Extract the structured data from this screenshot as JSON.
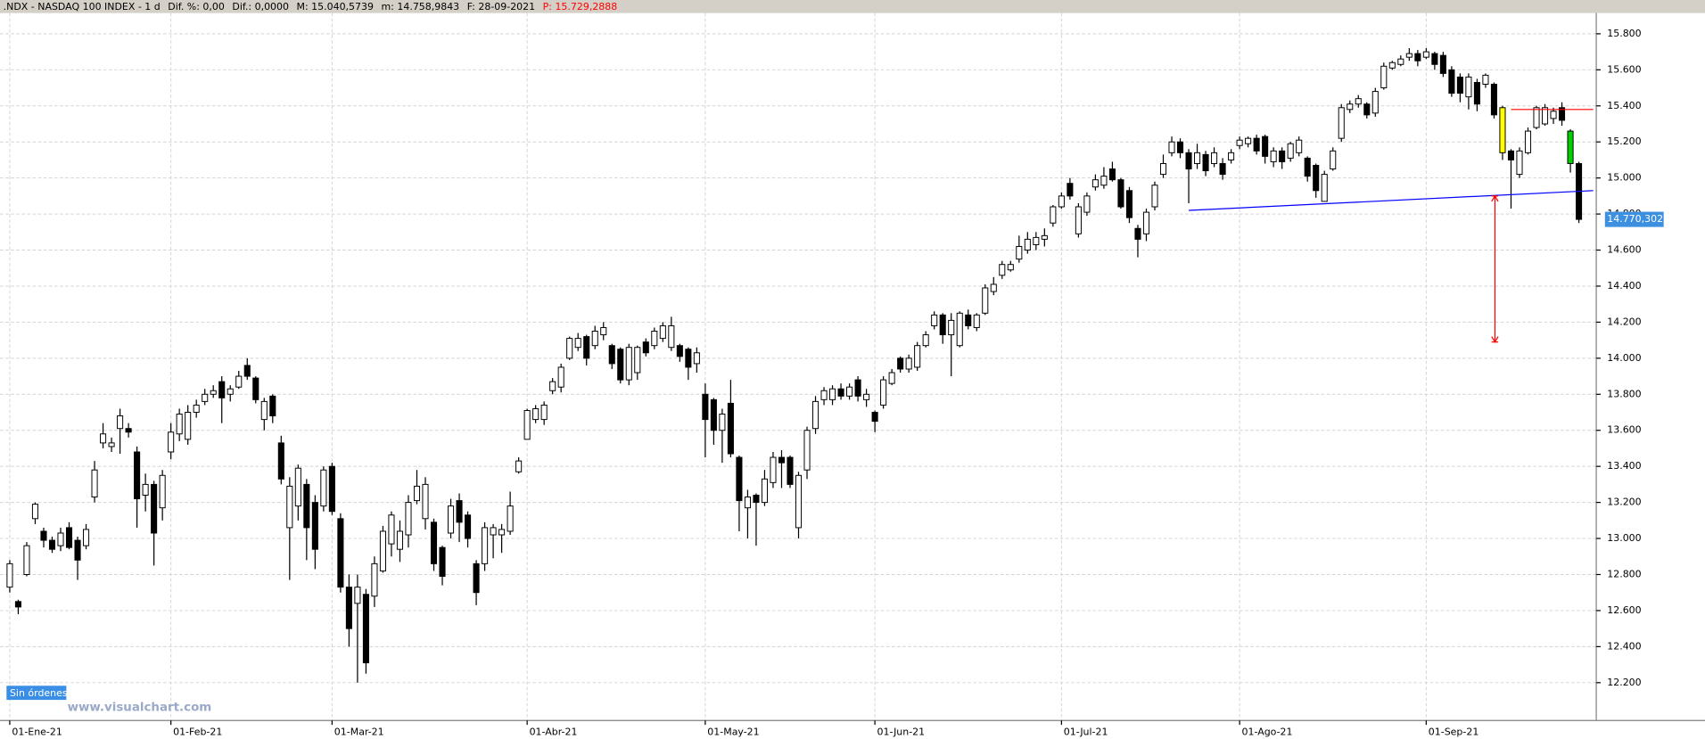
{
  "chart_data": {
    "type": "candlestick",
    "title": ".NDX - NASDAQ 100 INDEX - 1 d",
    "stats": [
      "Dif. %: 0,00",
      "Dif.: 0,0000",
      "M: 15.040,5739",
      "m: 14.758,9843",
      "F: 28-09-2021"
    ],
    "stat_highlight": {
      "text": "P: 15.729,2888",
      "color": "#ff0000"
    },
    "status": "Sin órdenes",
    "watermark": "www.visualchart.com",
    "last_price": {
      "value": 14770.3021,
      "label": "14.770,3021",
      "color": "#3d8fe0"
    },
    "up_color": "#ffffff",
    "down_color": "#000000",
    "highlights": [
      {
        "index": 176,
        "color": "#ffff00"
      },
      {
        "index": 184,
        "color": "#00d000"
      }
    ],
    "grid": true,
    "xlim": [
      -1.15,
      187.05
    ],
    "xticks": [
      {
        "value": 0,
        "label": "01-Ene-21"
      },
      {
        "value": 19,
        "label": "01-Feb-21"
      },
      {
        "value": 38,
        "label": "01-Mar-21"
      },
      {
        "value": 61,
        "label": "01-Abr-21"
      },
      {
        "value": 82,
        "label": "01-May-21"
      },
      {
        "value": 102,
        "label": "01-Jun-21"
      },
      {
        "value": 124,
        "label": "01-Jul-21"
      },
      {
        "value": 145,
        "label": "01-Ago-21"
      },
      {
        "value": 167,
        "label": "01-Sep-21"
      }
    ],
    "ylim": [
      11990,
      15915
    ],
    "yticks": [
      {
        "value": 12200,
        "label": "12.200"
      },
      {
        "value": 12400,
        "label": "12.400"
      },
      {
        "value": 12600,
        "label": "12.600"
      },
      {
        "value": 12800,
        "label": "12.800"
      },
      {
        "value": 13000,
        "label": "13.000"
      },
      {
        "value": 13200,
        "label": "13.200"
      },
      {
        "value": 13400,
        "label": "13.400"
      },
      {
        "value": 13600,
        "label": "13.600"
      },
      {
        "value": 13800,
        "label": "13.800"
      },
      {
        "value": 14000,
        "label": "14.000"
      },
      {
        "value": 14200,
        "label": "14.200"
      },
      {
        "value": 14400,
        "label": "14.400"
      },
      {
        "value": 14600,
        "label": "14.600"
      },
      {
        "value": 14800,
        "label": "14.800"
      },
      {
        "value": 15000,
        "label": "15.000"
      },
      {
        "value": 15200,
        "label": "15.200"
      },
      {
        "value": 15400,
        "label": "15.400"
      },
      {
        "value": 15600,
        "label": "15.600"
      },
      {
        "value": 15800,
        "label": "15.800"
      }
    ],
    "annotations": [
      {
        "kind": "trendline",
        "color": "#0000ff",
        "x": [
          139,
          186.7
        ],
        "y": [
          14820,
          14930
        ]
      },
      {
        "kind": "level",
        "color": "#ff0000",
        "x": [
          177,
          186.7
        ],
        "y": [
          15380,
          15380
        ]
      },
      {
        "kind": "measure",
        "color": "#ff0000",
        "x": [
          175.1,
          175.1
        ],
        "y": [
          14900,
          14090
        ]
      }
    ],
    "ohlc": [
      [
        12730,
        12880,
        12700,
        12860
      ],
      [
        12650,
        12660,
        12580,
        12620
      ],
      [
        12800,
        12980,
        12790,
        12960
      ],
      [
        13110,
        13200,
        13080,
        13190
      ],
      [
        13040,
        13060,
        12950,
        12990
      ],
      [
        12990,
        13010,
        12920,
        12940
      ],
      [
        12960,
        13060,
        12930,
        13030
      ],
      [
        13060,
        13090,
        12940,
        12950
      ],
      [
        12990,
        13010,
        12770,
        12880
      ],
      [
        12960,
        13080,
        12940,
        13050
      ],
      [
        13230,
        13430,
        13200,
        13380
      ],
      [
        13530,
        13640,
        13500,
        13580
      ],
      [
        13510,
        13560,
        13480,
        13530
      ],
      [
        13610,
        13720,
        13470,
        13680
      ],
      [
        13610,
        13640,
        13560,
        13590
      ],
      [
        13480,
        13510,
        13060,
        13220
      ],
      [
        13240,
        13360,
        13150,
        13300
      ],
      [
        13300,
        13320,
        12850,
        13030
      ],
      [
        13170,
        13380,
        13100,
        13350
      ],
      [
        13480,
        13640,
        13440,
        13590
      ],
      [
        13580,
        13720,
        13540,
        13690
      ],
      [
        13550,
        13740,
        13520,
        13700
      ],
      [
        13700,
        13770,
        13670,
        13740
      ],
      [
        13760,
        13830,
        13740,
        13800
      ],
      [
        13800,
        13850,
        13780,
        13820
      ],
      [
        13870,
        13900,
        13640,
        13780
      ],
      [
        13800,
        13850,
        13760,
        13830
      ],
      [
        13840,
        13930,
        13830,
        13900
      ],
      [
        13960,
        14000,
        13880,
        13900
      ],
      [
        13890,
        13900,
        13750,
        13770
      ],
      [
        13660,
        13780,
        13600,
        13760
      ],
      [
        13790,
        13800,
        13640,
        13680
      ],
      [
        13530,
        13570,
        13300,
        13330
      ],
      [
        13060,
        13340,
        12770,
        13290
      ],
      [
        13180,
        13410,
        13100,
        13390
      ],
      [
        13300,
        13330,
        12880,
        13060
      ],
      [
        13200,
        13240,
        12830,
        12940
      ],
      [
        13180,
        13400,
        13150,
        13380
      ],
      [
        13400,
        13420,
        13130,
        13150
      ],
      [
        13110,
        13140,
        12700,
        12730
      ],
      [
        12730,
        12800,
        12400,
        12500
      ],
      [
        12640,
        12800,
        12200,
        12730
      ],
      [
        12690,
        12720,
        12250,
        12310
      ],
      [
        12680,
        12900,
        12620,
        12860
      ],
      [
        12820,
        13070,
        12810,
        13040
      ],
      [
        12970,
        13150,
        12900,
        13130
      ],
      [
        12940,
        13100,
        12870,
        13040
      ],
      [
        13020,
        13240,
        12950,
        13200
      ],
      [
        13210,
        13380,
        13190,
        13290
      ],
      [
        13110,
        13340,
        13050,
        13300
      ],
      [
        13090,
        13110,
        12820,
        12860
      ],
      [
        12950,
        12960,
        12740,
        12790
      ],
      [
        13030,
        13220,
        13000,
        13180
      ],
      [
        13210,
        13250,
        12980,
        13090
      ],
      [
        13130,
        13150,
        12950,
        13000
      ],
      [
        12860,
        12880,
        12630,
        12700
      ],
      [
        12860,
        13090,
        12820,
        13060
      ],
      [
        13020,
        13080,
        12890,
        13060
      ],
      [
        13020,
        13080,
        12920,
        13050
      ],
      [
        13040,
        13260,
        13020,
        13180
      ],
      [
        13370,
        13450,
        13360,
        13430
      ],
      [
        13550,
        13720,
        13550,
        13710
      ],
      [
        13660,
        13740,
        13640,
        13720
      ],
      [
        13660,
        13760,
        13630,
        13740
      ],
      [
        13820,
        13890,
        13800,
        13870
      ],
      [
        13840,
        13970,
        13810,
        13950
      ],
      [
        14000,
        14120,
        13990,
        14110
      ],
      [
        14060,
        14140,
        14040,
        14110
      ],
      [
        14120,
        14130,
        13960,
        14000
      ],
      [
        14070,
        14180,
        14050,
        14150
      ],
      [
        14130,
        14200,
        14100,
        14170
      ],
      [
        14070,
        14080,
        13940,
        13970
      ],
      [
        14050,
        14060,
        13860,
        13880
      ],
      [
        13880,
        14080,
        13850,
        14060
      ],
      [
        13920,
        14070,
        13880,
        14060
      ],
      [
        14090,
        14110,
        14010,
        14030
      ],
      [
        14070,
        14170,
        14050,
        14150
      ],
      [
        14110,
        14200,
        14090,
        14180
      ],
      [
        14060,
        14230,
        14040,
        14180
      ],
      [
        14070,
        14080,
        13980,
        14010
      ],
      [
        14050,
        14060,
        13880,
        13950
      ],
      [
        13970,
        14060,
        13920,
        14030
      ],
      [
        13800,
        13860,
        13450,
        13660
      ],
      [
        13770,
        13780,
        13520,
        13600
      ],
      [
        13600,
        13720,
        13420,
        13690
      ],
      [
        13750,
        13880,
        13450,
        13470
      ],
      [
        13450,
        13460,
        13040,
        13210
      ],
      [
        13170,
        13270,
        13000,
        13230
      ],
      [
        13240,
        13250,
        12960,
        13200
      ],
      [
        13200,
        13380,
        13180,
        13330
      ],
      [
        13310,
        13480,
        13280,
        13450
      ],
      [
        13450,
        13490,
        13280,
        13420
      ],
      [
        13450,
        13460,
        13280,
        13300
      ],
      [
        13060,
        13370,
        13000,
        13350
      ],
      [
        13380,
        13620,
        13330,
        13600
      ],
      [
        13610,
        13790,
        13580,
        13760
      ],
      [
        13770,
        13840,
        13740,
        13820
      ],
      [
        13770,
        13850,
        13740,
        13830
      ],
      [
        13830,
        13860,
        13770,
        13790
      ],
      [
        13790,
        13860,
        13770,
        13840
      ],
      [
        13880,
        13900,
        13760,
        13790
      ],
      [
        13770,
        13830,
        13730,
        13800
      ],
      [
        13700,
        13710,
        13590,
        13650
      ],
      [
        13740,
        13900,
        13720,
        13880
      ],
      [
        13860,
        13940,
        13850,
        13920
      ],
      [
        14000,
        14010,
        13920,
        13940
      ],
      [
        13940,
        14020,
        13920,
        14000
      ],
      [
        13950,
        14090,
        13930,
        14070
      ],
      [
        14070,
        14150,
        14060,
        14130
      ],
      [
        14180,
        14260,
        14160,
        14240
      ],
      [
        14240,
        14250,
        14080,
        14130
      ],
      [
        14130,
        14250,
        13900,
        14210
      ],
      [
        14070,
        14260,
        14060,
        14250
      ],
      [
        14240,
        14270,
        14160,
        14180
      ],
      [
        14170,
        14250,
        14150,
        14240
      ],
      [
        14250,
        14410,
        14240,
        14390
      ],
      [
        14370,
        14450,
        14350,
        14410
      ],
      [
        14460,
        14540,
        14440,
        14520
      ],
      [
        14490,
        14540,
        14480,
        14520
      ],
      [
        14550,
        14680,
        14530,
        14620
      ],
      [
        14600,
        14700,
        14580,
        14660
      ],
      [
        14630,
        14700,
        14600,
        14670
      ],
      [
        14660,
        14720,
        14620,
        14680
      ],
      [
        14750,
        14850,
        14730,
        14840
      ],
      [
        14840,
        14920,
        14830,
        14900
      ],
      [
        14970,
        15000,
        14880,
        14900
      ],
      [
        14690,
        14860,
        14670,
        14840
      ],
      [
        14810,
        14920,
        14790,
        14900
      ],
      [
        14950,
        15020,
        14930,
        14990
      ],
      [
        14960,
        15060,
        14940,
        15010
      ],
      [
        15050,
        15090,
        14980,
        14990
      ],
      [
        14990,
        15000,
        14830,
        14840
      ],
      [
        14930,
        14950,
        14750,
        14780
      ],
      [
        14720,
        14740,
        14560,
        14660
      ],
      [
        14690,
        14830,
        14650,
        14810
      ],
      [
        14840,
        14980,
        14820,
        14960
      ],
      [
        15020,
        15130,
        15000,
        15080
      ],
      [
        15140,
        15230,
        15120,
        15200
      ],
      [
        15200,
        15220,
        15110,
        15140
      ],
      [
        15140,
        15160,
        14860,
        15050
      ],
      [
        15080,
        15190,
        15050,
        15140
      ],
      [
        15130,
        15150,
        15010,
        15040
      ],
      [
        15080,
        15170,
        15060,
        15140
      ],
      [
        15080,
        15110,
        14990,
        15020
      ],
      [
        15100,
        15160,
        15080,
        15140
      ],
      [
        15180,
        15230,
        15160,
        15210
      ],
      [
        15190,
        15230,
        15170,
        15220
      ],
      [
        15220,
        15240,
        15130,
        15150
      ],
      [
        15230,
        15240,
        15080,
        15120
      ],
      [
        15090,
        15170,
        15060,
        15150
      ],
      [
        15150,
        15170,
        15050,
        15090
      ],
      [
        15110,
        15200,
        15090,
        15190
      ],
      [
        15140,
        15230,
        15120,
        15210
      ],
      [
        15110,
        15120,
        14980,
        15010
      ],
      [
        15070,
        15080,
        14890,
        14930
      ],
      [
        14870,
        15040,
        14870,
        15020
      ],
      [
        15050,
        15170,
        15040,
        15150
      ],
      [
        15220,
        15410,
        15200,
        15390
      ],
      [
        15380,
        15430,
        15360,
        15410
      ],
      [
        15410,
        15460,
        15390,
        15440
      ],
      [
        15410,
        15420,
        15330,
        15350
      ],
      [
        15360,
        15500,
        15340,
        15480
      ],
      [
        15500,
        15640,
        15490,
        15620
      ],
      [
        15610,
        15650,
        15600,
        15640
      ],
      [
        15630,
        15680,
        15620,
        15660
      ],
      [
        15670,
        15720,
        15650,
        15690
      ],
      [
        15690,
        15710,
        15620,
        15650
      ],
      [
        15670,
        15720,
        15660,
        15700
      ],
      [
        15690,
        15700,
        15600,
        15630
      ],
      [
        15680,
        15700,
        15560,
        15580
      ],
      [
        15600,
        15620,
        15450,
        15470
      ],
      [
        15560,
        15580,
        15420,
        15470
      ],
      [
        15450,
        15580,
        15380,
        15560
      ],
      [
        15530,
        15550,
        15370,
        15410
      ],
      [
        15520,
        15580,
        15500,
        15570
      ],
      [
        15520,
        15530,
        15330,
        15350
      ],
      [
        15390,
        15400,
        15100,
        15140
      ],
      [
        15150,
        15160,
        14830,
        15100
      ],
      [
        15020,
        15170,
        15000,
        15150
      ],
      [
        15140,
        15280,
        15130,
        15260
      ],
      [
        15280,
        15400,
        15270,
        15390
      ],
      [
        15300,
        15410,
        15290,
        15390
      ],
      [
        15330,
        15390,
        15300,
        15370
      ],
      [
        15390,
        15420,
        15290,
        15320
      ],
      [
        15260,
        15270,
        15030,
        15080
      ],
      [
        15080,
        15090,
        14750,
        14770.3021
      ]
    ]
  }
}
